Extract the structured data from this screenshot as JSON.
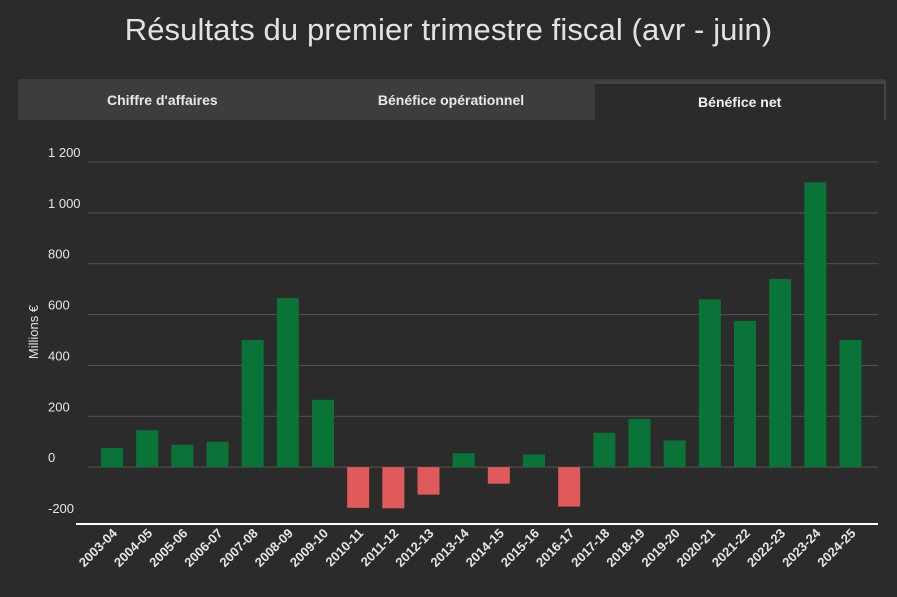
{
  "title": "Résultats du premier trimestre fiscal (avr - juin)",
  "tabs": [
    {
      "label": "Chiffre d'affaires",
      "active": false
    },
    {
      "label": "Bénéfice opérationnel",
      "active": false
    },
    {
      "label": "Bénéfice net",
      "active": true
    }
  ],
  "colors": {
    "positive": "#0a7337",
    "negative": "#e05a5a",
    "grid": "#555555",
    "axis": "#ffffff"
  },
  "chart_data": {
    "type": "bar",
    "title": "Résultats du premier trimestre fiscal (avr - juin)",
    "xlabel": "",
    "ylabel": "Millions €",
    "ylim": [
      -200,
      1200
    ],
    "yticks": [
      -200,
      0,
      200,
      400,
      600,
      800,
      1000,
      1200
    ],
    "ytick_labels": [
      "-200",
      "0",
      "200",
      "400",
      "600",
      "800",
      "1 000",
      "1 200"
    ],
    "categories": [
      "2003-04",
      "2004-05",
      "2005-06",
      "2006-07",
      "2007-08",
      "2008-09",
      "2009-10",
      "2010-11",
      "2011-12",
      "2012-13",
      "2013-14",
      "2014-15",
      "2015-16",
      "2016-17",
      "2017-18",
      "2018-19",
      "2019-20",
      "2020-21",
      "2021-22",
      "2022-23",
      "2023-24",
      "2024-25"
    ],
    "values": [
      75,
      145,
      88,
      100,
      500,
      665,
      265,
      -160,
      -162,
      -108,
      55,
      -65,
      50,
      -155,
      135,
      190,
      105,
      660,
      575,
      740,
      1120,
      500
    ],
    "grid": true
  }
}
